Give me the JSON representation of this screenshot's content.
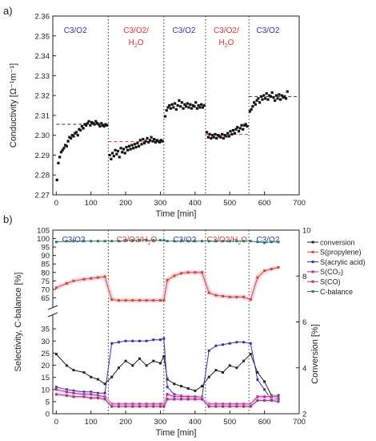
{
  "panel_a": {
    "letter": "a)"
  },
  "panel_b": {
    "letter": "b)"
  },
  "chart_data": [
    {
      "type": "scatter",
      "xlabel": "Time [min]",
      "ylabel": "Conductivity  [Ω⁻¹m⁻¹]",
      "xlim": [
        -10,
        700
      ],
      "ylim": [
        2.27,
        2.36
      ],
      "xticks": [
        0,
        100,
        200,
        300,
        400,
        500,
        600,
        700
      ],
      "yticks": [
        2.27,
        2.28,
        2.29,
        2.3,
        2.31,
        2.32,
        2.33,
        2.34,
        2.35,
        2.36
      ],
      "phase_boundaries": [
        150,
        310,
        430,
        555
      ],
      "phase_labels": [
        {
          "text": "C3/O2",
          "x": 55,
          "color": "#3333aa"
        },
        {
          "text": "C3/O2/",
          "sub": "H",
          "subscript": "2",
          "tail": "O",
          "x": 230,
          "color": "#e8302a"
        },
        {
          "text": "C3/O2",
          "x": 368,
          "color": "#3333aa"
        },
        {
          "text": "C3/O2/",
          "sub": "H",
          "subscript": "2",
          "tail": "O",
          "x": 490,
          "color": "#e8302a"
        },
        {
          "text": "C3/O2",
          "x": 610,
          "color": "#3333aa"
        }
      ],
      "levels": [
        {
          "x0": 0,
          "x1": 150,
          "y": 2.3055,
          "color": "#222a6e"
        },
        {
          "x0": 150,
          "x1": 310,
          "y": 2.2968,
          "color": "#e8302a"
        },
        {
          "x0": 430,
          "x1": 555,
          "y": 2.3004,
          "color": "#e8302a"
        },
        {
          "x0": 555,
          "x1": 700,
          "y": 2.3195,
          "color": "#222a6e"
        }
      ],
      "series": [
        {
          "x": [
            2,
            6,
            10,
            14,
            18,
            22,
            26,
            30,
            34,
            38,
            42,
            46,
            50,
            54,
            58,
            62,
            66,
            70,
            74,
            78,
            82,
            86,
            90,
            94,
            98,
            102,
            106,
            110,
            114,
            118,
            122,
            126,
            130,
            134,
            138,
            142,
            146
          ],
          "y": [
            2.2775,
            2.286,
            2.289,
            2.2915,
            2.2925,
            2.2935,
            2.295,
            2.2945,
            2.297,
            2.299,
            2.2985,
            2.3,
            2.2995,
            2.301,
            2.3015,
            2.3,
            2.303,
            2.3025,
            2.3045,
            2.3035,
            2.3055,
            2.305,
            2.306,
            2.307,
            2.305,
            2.3065,
            2.306,
            2.3055,
            2.307,
            2.306,
            2.3055,
            2.3045,
            2.306,
            2.305,
            2.3045,
            2.3055,
            2.305
          ]
        },
        {
          "x": [
            154,
            158,
            162,
            166,
            170,
            174,
            178,
            182,
            186,
            190,
            194,
            198,
            202,
            206,
            210,
            214,
            218,
            222,
            226,
            230,
            234,
            238,
            242,
            246,
            250,
            254,
            258,
            262,
            266,
            270,
            274,
            278,
            282,
            286,
            290,
            294,
            298,
            302,
            306
          ],
          "y": [
            2.29,
            2.288,
            2.291,
            2.2895,
            2.2925,
            2.2905,
            2.292,
            2.289,
            2.2935,
            2.2915,
            2.293,
            2.291,
            2.294,
            2.2925,
            2.2945,
            2.293,
            2.295,
            2.2935,
            2.2955,
            2.294,
            2.296,
            2.2945,
            2.2975,
            2.2955,
            2.298,
            2.296,
            2.297,
            2.2985,
            2.2965,
            2.2975,
            2.299,
            2.297,
            2.298,
            2.2965,
            2.2975,
            2.297,
            2.2965,
            2.2975,
            2.297
          ]
        },
        {
          "x": [
            314,
            318,
            322,
            326,
            330,
            334,
            338,
            342,
            346,
            350,
            354,
            358,
            362,
            366,
            370,
            374,
            378,
            382,
            386,
            390,
            394,
            398,
            402,
            406,
            410,
            414,
            418,
            422,
            426
          ],
          "y": [
            2.3095,
            2.3125,
            2.314,
            2.315,
            2.3135,
            2.3155,
            2.314,
            2.316,
            2.313,
            2.315,
            2.3175,
            2.3145,
            2.3165,
            2.3135,
            2.3155,
            2.3145,
            2.316,
            2.314,
            2.3155,
            2.3135,
            2.315,
            2.3145,
            2.3165,
            2.3135,
            2.315,
            2.314,
            2.3155,
            2.314,
            2.315
          ]
        },
        {
          "x": [
            434,
            438,
            442,
            446,
            450,
            454,
            458,
            462,
            466,
            470,
            474,
            478,
            482,
            486,
            490,
            494,
            498,
            502,
            506,
            510,
            514,
            518,
            522,
            526,
            530,
            534,
            538,
            542,
            546,
            550
          ],
          "y": [
            2.3015,
            2.299,
            2.3005,
            2.2985,
            2.3,
            2.299,
            2.3005,
            2.2985,
            2.3,
            2.2995,
            2.299,
            2.3005,
            2.2985,
            2.3,
            2.2995,
            2.301,
            2.2995,
            2.302,
            2.3005,
            2.3025,
            2.301,
            2.303,
            2.304,
            2.302,
            2.3035,
            2.305,
            2.303,
            2.305,
            2.3055,
            2.3045
          ]
        },
        {
          "x": [
            558,
            562,
            566,
            570,
            574,
            578,
            582,
            586,
            590,
            594,
            598,
            602,
            606,
            610,
            614,
            618,
            622,
            626,
            630,
            634,
            638,
            642,
            646,
            650,
            654,
            658,
            662,
            666
          ],
          "y": [
            2.312,
            2.313,
            2.3145,
            2.3165,
            2.3155,
            2.3175,
            2.3185,
            2.3165,
            2.3195,
            2.318,
            2.32,
            2.3185,
            2.321,
            2.318,
            2.32,
            2.3195,
            2.3215,
            2.319,
            2.3175,
            2.32,
            2.3185,
            2.3205,
            2.318,
            2.32,
            2.319,
            2.3195,
            2.3185,
            2.322
          ]
        }
      ]
    },
    {
      "type": "line",
      "xlabel": "Time [min]",
      "ylabel": "Selectivity, C-balance [%]",
      "y2label": "Conversion [%]",
      "xlim": [
        -10,
        700
      ],
      "xticks": [
        0,
        100,
        200,
        300,
        400,
        500,
        600,
        700
      ],
      "ylim_top": [
        60,
        105
      ],
      "ylim_bottom": [
        0,
        40
      ],
      "yticks_top": [
        65,
        70,
        75,
        80,
        85,
        90,
        95,
        100,
        105
      ],
      "yticks_bottom": [
        0,
        5,
        10,
        15,
        20,
        25,
        30,
        35
      ],
      "y2lim": [
        2,
        10
      ],
      "y2ticks": [
        2,
        4,
        6,
        8,
        10
      ],
      "phase_boundaries": [
        150,
        310,
        430,
        555
      ],
      "phase_labels": [
        {
          "text": "C3/O2",
          "x": 50,
          "color": "#3333aa"
        },
        {
          "text": "C3/O2/H",
          "subscript": "2",
          "tail": "O",
          "x": 232,
          "color": "#e8302a"
        },
        {
          "text": "C3/O2",
          "x": 370,
          "color": "#3333aa"
        },
        {
          "text": "C3/O2/H",
          "subscript": "2",
          "tail": "O",
          "x": 492,
          "color": "#e8302a"
        },
        {
          "text": "C3/O2",
          "x": 610,
          "color": "#3333aa"
        }
      ],
      "x": [
        0,
        30,
        50,
        80,
        100,
        120,
        140,
        160,
        180,
        200,
        220,
        240,
        260,
        280,
        300,
        310,
        320,
        340,
        360,
        380,
        400,
        420,
        440,
        460,
        480,
        500,
        520,
        540,
        560,
        580,
        600,
        620,
        640
      ],
      "series": [
        {
          "name": "conversion",
          "axis": "right",
          "color": "#222222",
          "values": [
            4.6,
            4.1,
            3.9,
            3.8,
            3.6,
            3.5,
            3.3,
            3.6,
            4.0,
            4.3,
            4.1,
            4.4,
            4.1,
            4.3,
            4.2,
            4.5,
            3.5,
            3.3,
            3.2,
            3.1,
            3.0,
            3.2,
            3.6,
            3.9,
            3.8,
            4.1,
            4.0,
            4.3,
            4.6,
            3.8,
            3.4,
            2.8,
            2.8
          ]
        },
        {
          "name": "S(propylene)",
          "axis": "top",
          "color": "#c8501e",
          "values": [
            71,
            73.5,
            75,
            76,
            76.5,
            77,
            77.5,
            64,
            63.5,
            63.5,
            63.5,
            63.5,
            63.5,
            63.5,
            63.5,
            63.5,
            75.5,
            78,
            79.5,
            80,
            80,
            80,
            68,
            66.5,
            66,
            65.5,
            65.5,
            65.5,
            64,
            77,
            81,
            82,
            83
          ]
        },
        {
          "name": "S(acrylic acid)",
          "axis": "bottom",
          "color": "#3333aa",
          "values": [
            11,
            10,
            9.5,
            9,
            9,
            8.5,
            8.5,
            29,
            29.5,
            30,
            30,
            30,
            30,
            30.5,
            30.5,
            31,
            11,
            8,
            7.5,
            7,
            7,
            7,
            26,
            28,
            28.5,
            29,
            29.5,
            29.5,
            29,
            14,
            10,
            6,
            6
          ]
        },
        {
          "name": "S(CO₂)",
          "axis": "bottom",
          "color": "#b52a8a",
          "values": [
            10,
            9,
            8.5,
            8,
            8,
            7.5,
            7,
            4,
            4,
            4,
            4,
            4,
            4,
            4,
            4,
            4,
            8,
            7,
            7,
            7,
            7,
            6.5,
            4,
            4,
            4,
            4,
            4,
            4,
            4,
            7,
            7,
            7,
            7
          ]
        },
        {
          "name": "S(CO)",
          "axis": "bottom",
          "color": "#8a3a7a",
          "values": [
            8,
            7.5,
            7,
            7,
            6.5,
            6.5,
            6,
            3,
            3,
            3,
            3,
            3,
            3,
            3,
            3,
            3,
            6,
            6,
            6,
            6,
            6,
            6,
            3,
            3,
            3,
            3,
            3,
            3,
            3,
            5.5,
            5.5,
            5.5,
            5
          ]
        },
        {
          "name": "C-balance",
          "axis": "top",
          "color": "#2a7a6a",
          "values": [
            98,
            98.5,
            98.5,
            98.5,
            98.5,
            98.5,
            98.5,
            98.5,
            98.5,
            99,
            99,
            99,
            99,
            99,
            99,
            99,
            98.5,
            98.5,
            98.5,
            98.5,
            98.5,
            98.5,
            98.5,
            98.5,
            98.5,
            98.5,
            98.5,
            98.5,
            98.5,
            98,
            97.5,
            98,
            98
          ]
        }
      ],
      "legend": [
        "conversion",
        "S(propylene)",
        "S(acrylic acid)",
        "S(CO₂)",
        "S(CO)",
        "C-balance"
      ],
      "legend_placement": "right"
    }
  ]
}
